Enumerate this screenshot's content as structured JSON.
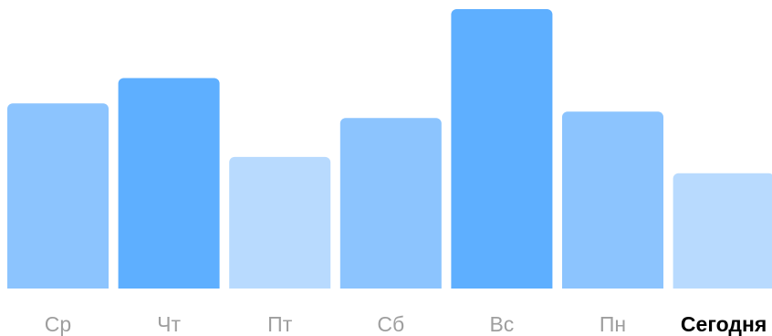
{
  "chart_data": {
    "type": "bar",
    "categories": [
      "Ср",
      "Чт",
      "Пт",
      "Сб",
      "Вс",
      "Пн",
      "Сегодня"
    ],
    "values": [
      204,
      232,
      145,
      188,
      308,
      195,
      127
    ],
    "highlighted_category": "Сегодня",
    "ylim": [
      0,
      310
    ],
    "grid": false,
    "legend": "none",
    "colors": {
      "bars": [
        "#8cc4fe",
        "#5eafff",
        "#b8dafe",
        "#8cc4fe",
        "#5eafff",
        "#8cc4fe",
        "#b8dafe"
      ],
      "label": "#9e9e9e",
      "label_highlight": "#000000"
    }
  }
}
